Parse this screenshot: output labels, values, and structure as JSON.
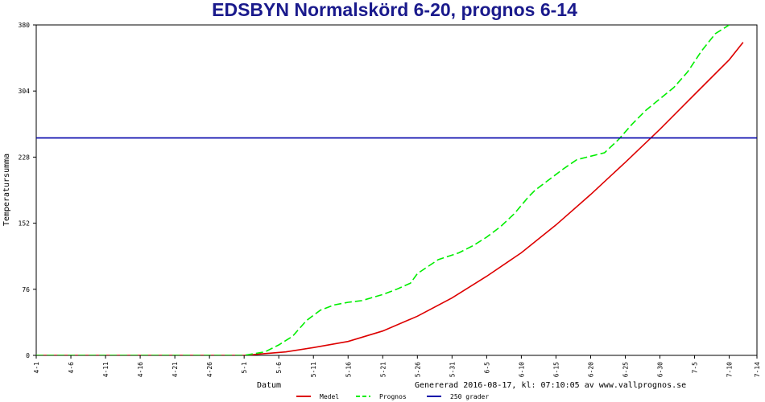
{
  "chart_data": {
    "type": "line",
    "title": "EDSBYN Normalskörd 6-20, prognos 6-14",
    "xlabel": "Datum",
    "ylabel": "Temperatursumma",
    "footer": "Genererad 2016-08-17, kl: 07:10:05 av www.vallprognos.se",
    "x_ticks": [
      "4-1",
      "4-6",
      "4-11",
      "4-16",
      "4-21",
      "4-26",
      "5-1",
      "5-6",
      "5-11",
      "5-16",
      "5-21",
      "5-26",
      "5-31",
      "6-5",
      "6-10",
      "6-15",
      "6-20",
      "6-25",
      "6-30",
      "7-5",
      "7-10",
      "7-14"
    ],
    "y_ticks": [
      "0",
      "76",
      "152",
      "228",
      "304",
      "380"
    ],
    "ylim": [
      0,
      380
    ],
    "series": [
      {
        "name": "Medel",
        "color": "#dd0000",
        "style": "solid",
        "x": [
          0,
          30,
          33,
          36,
          40,
          45,
          50,
          55,
          60,
          65,
          70,
          75,
          80,
          85,
          90,
          95,
          100,
          102
        ],
        "y": [
          0,
          0,
          2,
          4,
          9,
          16,
          28,
          45,
          66,
          91,
          118,
          150,
          185,
          222,
          260,
          300,
          340,
          360
        ]
      },
      {
        "name": "Prognos",
        "color": "#00ee00",
        "style": "dashed",
        "x": [
          0,
          30,
          33,
          35,
          37,
          39,
          41,
          43,
          45,
          47,
          50,
          52,
          54,
          55,
          58,
          61,
          63,
          65,
          67,
          69,
          71,
          72,
          74,
          76,
          78,
          80,
          82,
          84,
          86,
          88,
          90,
          92,
          94,
          96,
          98,
          100
        ],
        "y": [
          0,
          0,
          4,
          12,
          22,
          40,
          52,
          58,
          61,
          63,
          70,
          76,
          83,
          94,
          110,
          118,
          126,
          136,
          148,
          163,
          182,
          190,
          202,
          214,
          225,
          229,
          233,
          248,
          266,
          282,
          295,
          308,
          326,
          350,
          370,
          380
        ]
      },
      {
        "name": "250 grader",
        "color": "#0000aa",
        "style": "solid",
        "x": [
          0,
          104
        ],
        "y": [
          250,
          250
        ]
      }
    ]
  }
}
